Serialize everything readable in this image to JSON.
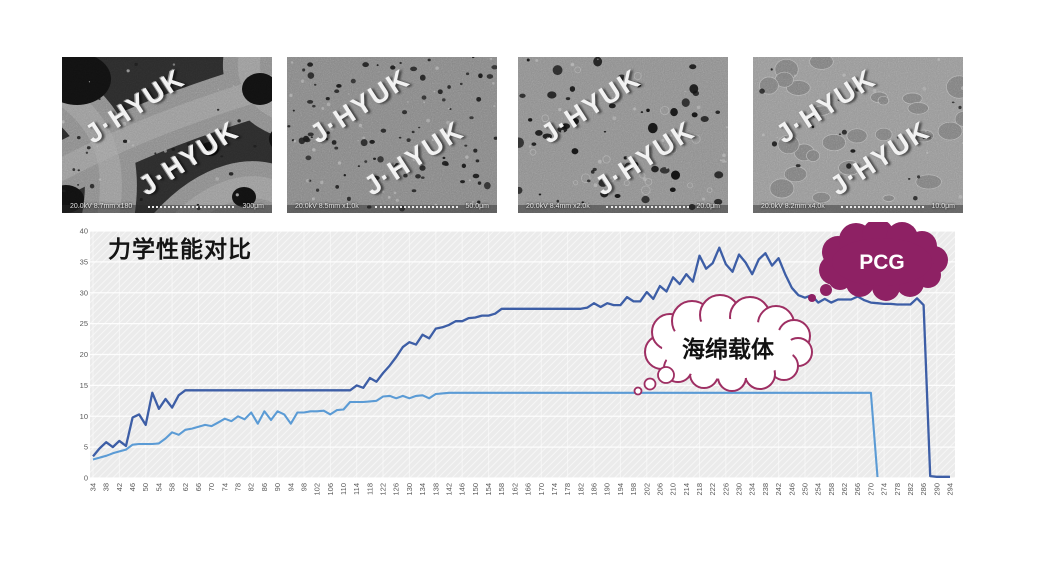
{
  "sem_images": [
    {
      "watermark": "J·HYUK",
      "metadata": "20.0kV 8.7mm x180",
      "scale": "300μm"
    },
    {
      "watermark": "J·HYUK",
      "metadata": "20.0kV 8.5mm x1.0k",
      "scale": "50.0μm"
    },
    {
      "watermark": "J·HYUK",
      "metadata": "20.0kV 8.4mm x2.0k",
      "scale": "20.0μm"
    },
    {
      "watermark": "J·HYUK",
      "metadata": "20.0kV 8.2mm x4.0k",
      "scale": "10.0μm"
    }
  ],
  "chart": {
    "title": "力学性能对比",
    "annotations": {
      "pcg_label": "PCG",
      "sponge_label": "海绵载体"
    },
    "colors": {
      "pcg_line": "#3d5ea6",
      "sponge_line": "#5b9bd5",
      "pcg_cloud": "#8e2164",
      "sponge_cloud_border": "#9e2f63",
      "axis_text": "#595959",
      "plot_bg": "#ebebeb",
      "grid": "#ffffff"
    }
  },
  "chart_data": {
    "type": "line",
    "title": "力学性能对比",
    "xlabel": "",
    "ylabel": "",
    "grid": true,
    "legend_position": "none (cloud callouts on plot)",
    "ylim": [
      0,
      40
    ],
    "y_ticks": [
      0,
      5,
      10,
      15,
      20,
      25,
      30,
      35,
      40
    ],
    "x_ticks": [
      34,
      38,
      42,
      46,
      50,
      54,
      58,
      62,
      66,
      70,
      74,
      78,
      82,
      86,
      90,
      94,
      98,
      102,
      106,
      110,
      114,
      118,
      122,
      126,
      130,
      134,
      138,
      142,
      146,
      150,
      154,
      158,
      162,
      166,
      170,
      174,
      178,
      182,
      186,
      190,
      194,
      198,
      202,
      206,
      210,
      214,
      218,
      222,
      226,
      230,
      234,
      238,
      242,
      246,
      250,
      254,
      258,
      262,
      266,
      270,
      274,
      278,
      282,
      286,
      290,
      294
    ],
    "series": [
      {
        "name": "PCG",
        "x": [
          34,
          36,
          38,
          40,
          42,
          44,
          46,
          48,
          50,
          52,
          54,
          56,
          58,
          60,
          62,
          64,
          66,
          68,
          70,
          72,
          74,
          76,
          78,
          80,
          82,
          84,
          86,
          88,
          90,
          92,
          94,
          96,
          98,
          100,
          102,
          104,
          106,
          108,
          110,
          112,
          114,
          116,
          118,
          120,
          122,
          124,
          126,
          128,
          130,
          132,
          134,
          136,
          138,
          140,
          142,
          144,
          146,
          148,
          150,
          152,
          154,
          156,
          158,
          160,
          162,
          164,
          166,
          168,
          170,
          172,
          174,
          176,
          178,
          180,
          182,
          184,
          186,
          188,
          190,
          192,
          194,
          196,
          198,
          200,
          202,
          204,
          206,
          208,
          210,
          212,
          214,
          216,
          218,
          220,
          222,
          224,
          226,
          228,
          230,
          232,
          234,
          236,
          238,
          240,
          242,
          244,
          246,
          248,
          250,
          252,
          254,
          256,
          258,
          260,
          262,
          264,
          266,
          268,
          270,
          272,
          274,
          276,
          278,
          280,
          282,
          284,
          286,
          288,
          290,
          292,
          294
        ],
        "values": [
          3.5,
          4.8,
          5.8,
          5.0,
          6.0,
          5.2,
          9.8,
          10.3,
          8.6,
          13.8,
          11.2,
          12.8,
          11.4,
          13.4,
          14.2,
          14.2,
          14.2,
          14.2,
          14.2,
          14.2,
          14.2,
          14.2,
          14.2,
          14.2,
          14.2,
          14.2,
          14.2,
          14.2,
          14.2,
          14.2,
          14.2,
          14.2,
          14.2,
          14.2,
          14.2,
          14.2,
          14.2,
          14.2,
          14.2,
          14.2,
          15.0,
          14.6,
          16.2,
          15.6,
          17.0,
          18.2,
          19.6,
          21.2,
          22.0,
          21.6,
          23.2,
          22.6,
          24.2,
          24.4,
          24.8,
          25.4,
          25.4,
          25.9,
          26.0,
          26.3,
          26.3,
          26.6,
          27.4,
          27.4,
          27.4,
          27.4,
          27.4,
          27.4,
          27.4,
          27.4,
          27.4,
          27.4,
          27.4,
          27.4,
          27.4,
          27.6,
          28.3,
          27.7,
          28.3,
          28.0,
          28.0,
          29.3,
          28.6,
          28.6,
          30.1,
          29.0,
          31.1,
          30.2,
          32.5,
          31.4,
          33.0,
          31.8,
          36.0,
          33.9,
          34.8,
          37.3,
          34.6,
          33.4,
          36.2,
          34.9,
          33.0,
          35.4,
          36.4,
          34.4,
          35.6,
          33.0,
          30.8,
          29.6,
          29.2,
          29.6,
          28.4,
          29.0,
          28.4,
          28.9,
          28.9,
          28.9,
          29.4,
          28.8,
          28.4,
          28.3,
          28.2,
          28.2,
          28.1,
          28.1,
          28.1,
          29.1,
          28.0,
          0.3,
          0.2,
          0.2,
          0.2
        ]
      },
      {
        "name": "海绵载体",
        "x": [
          34,
          36,
          38,
          40,
          42,
          44,
          46,
          48,
          50,
          52,
          54,
          56,
          58,
          60,
          62,
          64,
          66,
          68,
          70,
          72,
          74,
          76,
          78,
          80,
          82,
          84,
          86,
          88,
          90,
          92,
          94,
          96,
          98,
          100,
          102,
          104,
          106,
          108,
          110,
          112,
          114,
          116,
          118,
          120,
          122,
          124,
          126,
          128,
          130,
          132,
          134,
          136,
          138,
          140,
          142,
          144,
          146,
          148,
          150,
          152,
          154,
          156,
          158,
          160,
          162,
          164,
          166,
          168,
          170,
          172,
          174,
          176,
          178,
          180,
          182,
          184,
          186,
          188,
          190,
          192,
          194,
          196,
          198,
          200,
          202,
          204,
          206,
          208,
          210,
          212,
          214,
          216,
          218,
          220,
          222,
          224,
          226,
          228,
          230,
          232,
          234,
          236,
          238,
          240,
          242,
          244,
          246,
          248,
          250,
          252,
          254,
          256,
          258,
          260,
          262,
          264,
          266,
          268,
          270,
          272
        ],
        "values": [
          3.0,
          3.3,
          3.6,
          4.0,
          4.3,
          4.6,
          5.4,
          5.5,
          5.5,
          5.5,
          5.6,
          6.4,
          7.4,
          7.0,
          7.8,
          8.0,
          8.3,
          8.6,
          8.4,
          9.0,
          9.6,
          9.2,
          10.0,
          9.5,
          10.6,
          8.8,
          10.8,
          9.4,
          10.8,
          10.3,
          8.8,
          10.6,
          10.6,
          10.8,
          10.8,
          10.9,
          10.3,
          11.0,
          11.1,
          12.3,
          12.3,
          12.3,
          12.4,
          12.5,
          13.2,
          13.3,
          12.9,
          13.3,
          12.9,
          13.3,
          13.4,
          12.9,
          13.6,
          13.7,
          13.8,
          13.8,
          13.8,
          13.8,
          13.8,
          13.8,
          13.8,
          13.8,
          13.8,
          13.8,
          13.8,
          13.8,
          13.8,
          13.8,
          13.8,
          13.8,
          13.8,
          13.8,
          13.8,
          13.8,
          13.8,
          13.8,
          13.8,
          13.8,
          13.8,
          13.8,
          13.8,
          13.8,
          13.8,
          13.8,
          13.8,
          13.8,
          13.8,
          13.8,
          13.8,
          13.8,
          13.8,
          13.8,
          13.8,
          13.8,
          13.8,
          13.8,
          13.8,
          13.8,
          13.8,
          13.8,
          13.8,
          13.8,
          13.8,
          13.8,
          13.8,
          13.8,
          13.8,
          13.8,
          13.8,
          13.8,
          13.8,
          13.8,
          13.8,
          13.8,
          13.8,
          13.8,
          13.8,
          13.8,
          13.8,
          0.15
        ]
      }
    ]
  }
}
